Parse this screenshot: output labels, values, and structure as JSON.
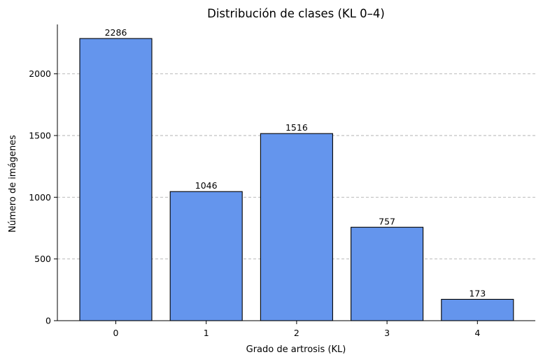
{
  "chart_data": {
    "type": "bar",
    "title": "Distribución de clases (KL 0–4)",
    "xlabel": "Grado de artrosis (KL)",
    "ylabel": "Número de imágenes",
    "categories": [
      "0",
      "1",
      "2",
      "3",
      "4"
    ],
    "values": [
      2286,
      1046,
      1516,
      757,
      173
    ],
    "data_labels": [
      "2286",
      "1046",
      "1516",
      "757",
      "173"
    ],
    "ylim": [
      0,
      2400
    ],
    "yticks": [
      0,
      500,
      1000,
      1500,
      2000
    ],
    "ytick_labels": [
      "0",
      "500",
      "1000",
      "1500",
      "2000"
    ],
    "grid": {
      "y": true,
      "x": false,
      "style": "dashed"
    },
    "bar_color": "#6495ed",
    "edge_color": "#000000"
  }
}
